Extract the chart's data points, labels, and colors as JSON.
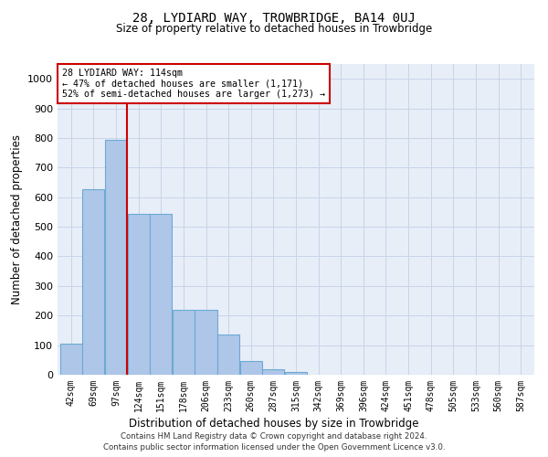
{
  "title": "28, LYDIARD WAY, TROWBRIDGE, BA14 0UJ",
  "subtitle": "Size of property relative to detached houses in Trowbridge",
  "xlabel": "Distribution of detached houses by size in Trowbridge",
  "ylabel": "Number of detached properties",
  "footer_line1": "Contains HM Land Registry data © Crown copyright and database right 2024.",
  "footer_line2": "Contains public sector information licensed under the Open Government Licence v3.0.",
  "bar_labels": [
    "42sqm",
    "69sqm",
    "97sqm",
    "124sqm",
    "151sqm",
    "178sqm",
    "206sqm",
    "233sqm",
    "260sqm",
    "287sqm",
    "315sqm",
    "342sqm",
    "369sqm",
    "396sqm",
    "424sqm",
    "451sqm",
    "478sqm",
    "505sqm",
    "533sqm",
    "560sqm",
    "587sqm"
  ],
  "bar_values": [
    105,
    628,
    793,
    543,
    543,
    218,
    218,
    135,
    45,
    18,
    10,
    0,
    0,
    0,
    0,
    0,
    0,
    0,
    0,
    0,
    0
  ],
  "bar_color": "#aec6e8",
  "bar_edge_color": "#6aaad4",
  "property_line_label": "28 LYDIARD WAY: 114sqm",
  "annotation_line1": "← 47% of detached houses are smaller (1,171)",
  "annotation_line2": "52% of semi-detached houses are larger (1,273) →",
  "annotation_box_color": "white",
  "annotation_box_edge_color": "#cc0000",
  "vline_color": "#cc0000",
  "ylim": [
    0,
    1050
  ],
  "yticks": [
    0,
    100,
    200,
    300,
    400,
    500,
    600,
    700,
    800,
    900,
    1000
  ],
  "grid_color": "#c8d4e8",
  "background_color": "#e8eef8",
  "title_fontsize": 10,
  "subtitle_fontsize": 9
}
